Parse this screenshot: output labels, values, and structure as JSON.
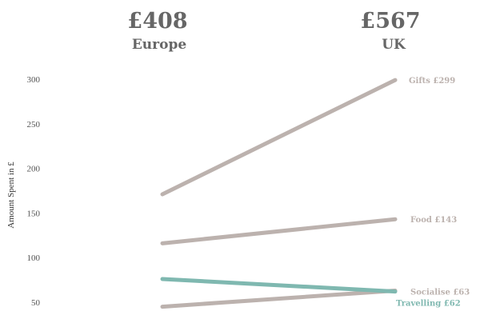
{
  "chart_data": {
    "type": "line",
    "categories": [
      "Europe",
      "UK"
    ],
    "totals": [
      "£408",
      "£567"
    ],
    "ylabel": "Amount Spent in £",
    "y_ticks": [
      50,
      100,
      150,
      200,
      250,
      300
    ],
    "ylim": [
      42,
      305
    ],
    "grid": false,
    "series": [
      {
        "name": "Gifts",
        "values": [
          171,
          299
        ],
        "label": "Gifts £299",
        "color": "#bcb2ae"
      },
      {
        "name": "Food",
        "values": [
          116,
          143
        ],
        "label": "Food £143",
        "color": "#bcb2ae"
      },
      {
        "name": "Socialise",
        "values": [
          45,
          63
        ],
        "label": "Socialise £63",
        "color": "#bcb2ae"
      },
      {
        "name": "Travelling",
        "values": [
          76,
          62
        ],
        "label": "Travelling £62",
        "color": "#7fb8b0"
      }
    ]
  }
}
